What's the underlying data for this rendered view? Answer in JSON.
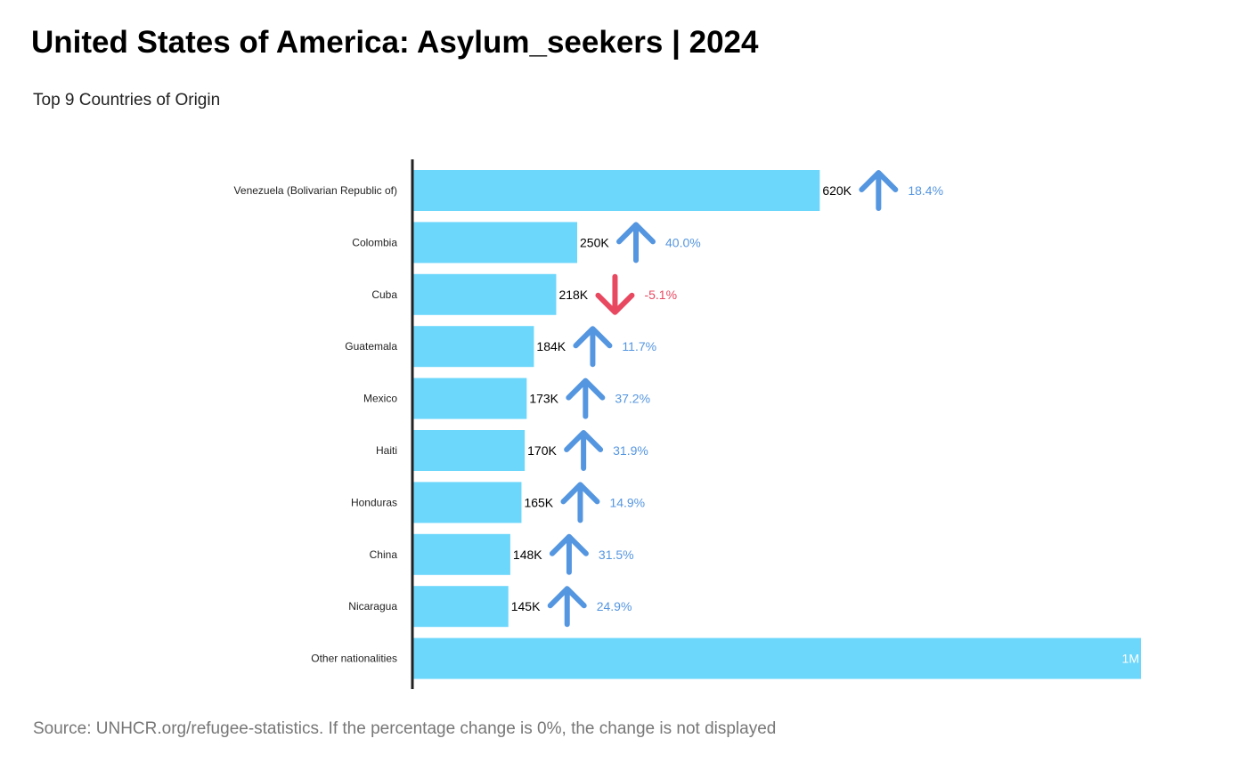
{
  "title": "United States of America: Asylum_seekers | 2024",
  "subtitle": "Top 9 Countries of Origin",
  "source": "Source: UNHCR.org/refugee-statistics. If the percentage change is 0%, the change is not displayed",
  "colors": {
    "bar": "#6dd7fb",
    "increase": "#5596e0",
    "decrease": "#e84860",
    "axis": "#222222",
    "label": "#000000",
    "other_label": "#ffffff"
  },
  "chart_data": {
    "type": "bar",
    "orientation": "horizontal",
    "categories": [
      "Venezuela (Bolivarian Republic of)",
      "Colombia",
      "Cuba",
      "Guatemala",
      "Mexico",
      "Haiti",
      "Honduras",
      "China",
      "Nicaragua",
      "Other nationalities"
    ],
    "values": [
      620000,
      250000,
      218000,
      184000,
      173000,
      170000,
      165000,
      148000,
      145000,
      1110000
    ],
    "value_labels": [
      "620K",
      "250K",
      "218K",
      "184K",
      "173K",
      "170K",
      "165K",
      "148K",
      "145K",
      "1M"
    ],
    "pct_change": [
      18.4,
      40.0,
      -5.1,
      11.7,
      37.2,
      31.9,
      14.9,
      31.5,
      24.9,
      null
    ],
    "pct_change_labels": [
      "18.4%",
      "40.0%",
      "-5.1%",
      "11.7%",
      "37.2%",
      "31.9%",
      "14.9%",
      "31.5%",
      "24.9%",
      ""
    ],
    "xlim": [
      0,
      1110000
    ],
    "grid": false,
    "legend": "none"
  }
}
